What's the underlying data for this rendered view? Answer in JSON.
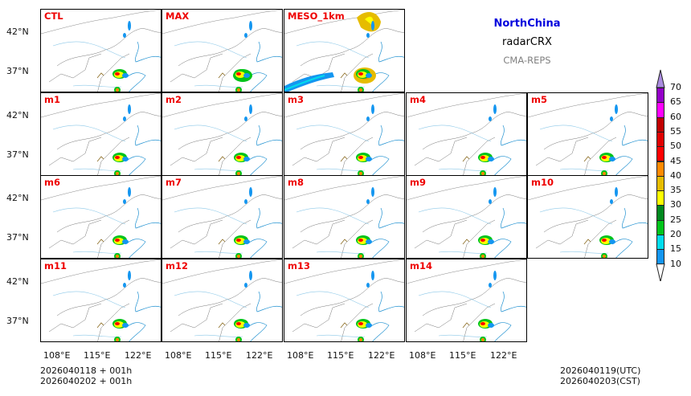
{
  "header": {
    "region": "NorthChina",
    "variable": "radarCRX",
    "model": "CMA-REPS",
    "region_color": "#0000dd",
    "model_color": "#808080"
  },
  "panels": [
    {
      "label": "CTL",
      "row": 0,
      "col": 0
    },
    {
      "label": "MAX",
      "row": 0,
      "col": 1
    },
    {
      "label": "MESO_1km",
      "row": 0,
      "col": 2
    },
    {
      "label": "m1",
      "row": 1,
      "col": 0
    },
    {
      "label": "m2",
      "row": 1,
      "col": 1
    },
    {
      "label": "m3",
      "row": 1,
      "col": 2
    },
    {
      "label": "m4",
      "row": 1,
      "col": 3
    },
    {
      "label": "m5",
      "row": 1,
      "col": 4
    },
    {
      "label": "m6",
      "row": 2,
      "col": 0
    },
    {
      "label": "m7",
      "row": 2,
      "col": 1
    },
    {
      "label": "m8",
      "row": 2,
      "col": 2
    },
    {
      "label": "m9",
      "row": 2,
      "col": 3
    },
    {
      "label": "m10",
      "row": 2,
      "col": 4
    },
    {
      "label": "m11",
      "row": 3,
      "col": 0
    },
    {
      "label": "m12",
      "row": 3,
      "col": 1
    },
    {
      "label": "m13",
      "row": 3,
      "col": 2
    },
    {
      "label": "m14",
      "row": 3,
      "col": 3
    }
  ],
  "axes": {
    "lat_ticks": [
      "42°N",
      "37°N"
    ],
    "lon_ticks": [
      "108°E",
      "115°E",
      "122°E"
    ]
  },
  "footer": {
    "init_line": "2026040118  +  001h",
    "init_line_cst": "2026040202  +  001h",
    "valid_utc": "2026040119(UTC)",
    "valid_cst": "2026040203(CST)"
  },
  "colorbar": {
    "labels": [
      "10",
      "15",
      "20",
      "25",
      "30",
      "35",
      "40",
      "45",
      "50",
      "55",
      "60",
      "65",
      "70"
    ],
    "colors": [
      "#1496f0",
      "#00dcec",
      "#00c41a",
      "#00881e",
      "#ffff00",
      "#e6bc00",
      "#ff8a00",
      "#ff0000",
      "#e00000",
      "#c00000",
      "#ff00ff",
      "#9400c8"
    ],
    "under_color": "#ffffff",
    "over_color": "#aa8ce0"
  }
}
